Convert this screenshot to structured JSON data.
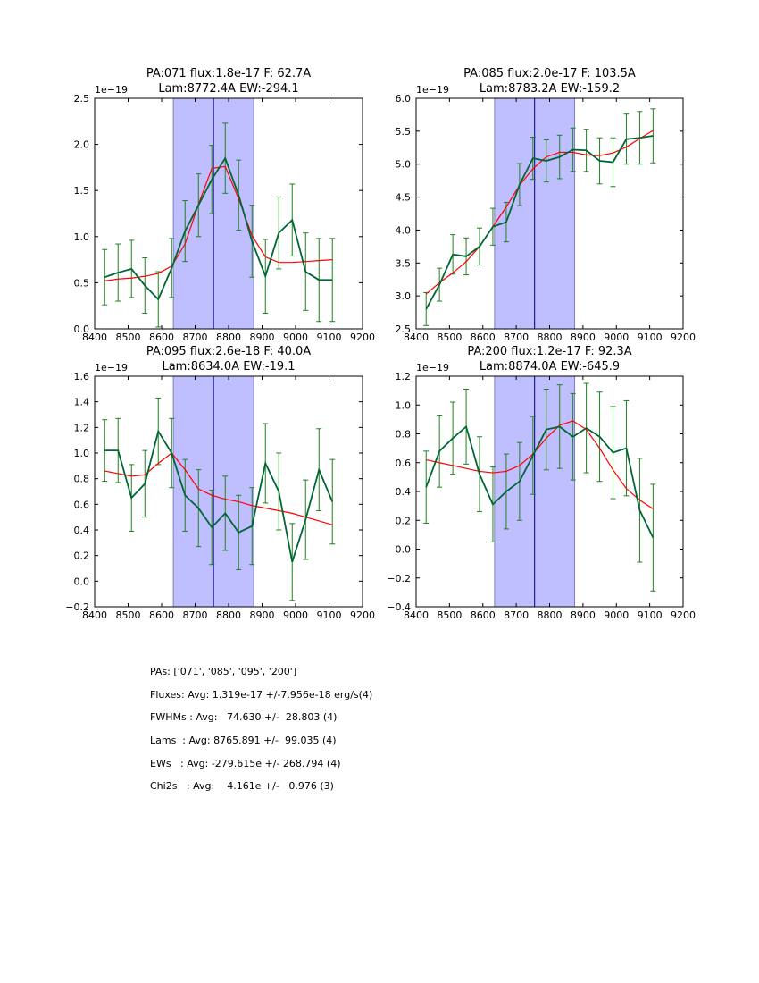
{
  "colors": {
    "band_fill": "#bfbfff",
    "band_edge": "#7f7fbf",
    "center_line": "#000080",
    "data_line": "#006633",
    "error_bar": "#208020",
    "fit_line": "#ff0000",
    "axis": "#000000"
  },
  "chart_data": [
    {
      "type": "line",
      "title_line1": "PA:071 flux:1.8e-17 F: 62.7A",
      "title_line2": "Lam:8772.4A EW:-294.1",
      "offset_label": "1e−19",
      "xlim": [
        8400,
        9200
      ],
      "ylim": [
        0.0,
        2.5
      ],
      "xticks": [
        8400,
        8500,
        8600,
        8700,
        8800,
        8900,
        9000,
        9100,
        9200
      ],
      "yticks": [
        0.0,
        0.5,
        1.0,
        1.5,
        2.0,
        2.5
      ],
      "xtick_labels": [
        "8400",
        "8500",
        "8600",
        "8700",
        "8800",
        "8900",
        "9000",
        "9100",
        "9200"
      ],
      "ytick_labels": [
        "0.0",
        "0.5",
        "1.0",
        "1.5",
        "2.0",
        "2.5"
      ],
      "band": [
        8635,
        8875
      ],
      "center": 8755,
      "x": [
        8430,
        8470,
        8510,
        8550,
        8590,
        8630,
        8670,
        8710,
        8750,
        8790,
        8830,
        8870,
        8910,
        8950,
        8990,
        9030,
        9070,
        9110
      ],
      "y": [
        0.56,
        0.61,
        0.65,
        0.47,
        0.32,
        0.66,
        1.06,
        1.34,
        1.62,
        1.85,
        1.45,
        0.95,
        0.57,
        1.04,
        1.18,
        0.62,
        0.53,
        0.53
      ],
      "err": [
        0.3,
        0.31,
        0.31,
        0.3,
        0.3,
        0.32,
        0.33,
        0.34,
        0.37,
        0.38,
        0.38,
        0.39,
        0.4,
        0.39,
        0.39,
        0.42,
        0.45,
        0.45
      ],
      "fit_x": [
        8430,
        8470,
        8510,
        8550,
        8590,
        8630,
        8670,
        8710,
        8750,
        8790,
        8830,
        8870,
        8910,
        8950,
        8990,
        9030,
        9070,
        9110
      ],
      "fit_y": [
        0.52,
        0.54,
        0.55,
        0.57,
        0.6,
        0.68,
        0.92,
        1.35,
        1.74,
        1.76,
        1.41,
        1.01,
        0.78,
        0.72,
        0.72,
        0.73,
        0.74,
        0.75
      ]
    },
    {
      "type": "line",
      "title_line1": "PA:085 flux:2.0e-17 F: 103.5A",
      "title_line2": "Lam:8783.2A EW:-159.2",
      "offset_label": "1e−19",
      "xlim": [
        8400,
        9200
      ],
      "ylim": [
        2.5,
        6.0
      ],
      "xticks": [
        8400,
        8500,
        8600,
        8700,
        8800,
        8900,
        9000,
        9100,
        9200
      ],
      "yticks": [
        2.5,
        3.0,
        3.5,
        4.0,
        4.5,
        5.0,
        5.5,
        6.0
      ],
      "xtick_labels": [
        "8400",
        "8500",
        "8600",
        "8700",
        "8800",
        "8900",
        "9000",
        "9100",
        "9200"
      ],
      "ytick_labels": [
        "2.5",
        "3.0",
        "3.5",
        "4.0",
        "4.5",
        "5.0",
        "5.5",
        "6.0"
      ],
      "band": [
        8635,
        8875
      ],
      "center": 8755,
      "x": [
        8430,
        8470,
        8510,
        8550,
        8590,
        8630,
        8670,
        8710,
        8750,
        8790,
        8830,
        8870,
        8910,
        8950,
        8990,
        9030,
        9070,
        9110
      ],
      "y": [
        2.8,
        3.17,
        3.63,
        3.6,
        3.75,
        4.05,
        4.12,
        4.69,
        5.09,
        5.05,
        5.11,
        5.22,
        5.21,
        5.05,
        5.03,
        5.38,
        5.4,
        5.43
      ],
      "err": [
        0.25,
        0.25,
        0.3,
        0.28,
        0.28,
        0.28,
        0.3,
        0.32,
        0.32,
        0.32,
        0.33,
        0.33,
        0.32,
        0.35,
        0.37,
        0.38,
        0.4,
        0.41
      ],
      "fit_x": [
        8430,
        8470,
        8510,
        8550,
        8590,
        8630,
        8670,
        8710,
        8750,
        8790,
        8830,
        8870,
        8910,
        8950,
        8990,
        9030,
        9070,
        9110
      ],
      "fit_y": [
        3.03,
        3.2,
        3.35,
        3.52,
        3.75,
        4.05,
        4.35,
        4.68,
        4.93,
        5.11,
        5.18,
        5.18,
        5.14,
        5.13,
        5.17,
        5.26,
        5.39,
        5.51
      ]
    },
    {
      "type": "line",
      "title_line1": "PA:095 flux:2.6e-18 F: 40.0A",
      "title_line2": "Lam:8634.0A EW:-19.1",
      "offset_label": "1e−19",
      "xlim": [
        8400,
        9200
      ],
      "ylim": [
        -0.2,
        1.6
      ],
      "xticks": [
        8400,
        8500,
        8600,
        8700,
        8800,
        8900,
        9000,
        9100,
        9200
      ],
      "yticks": [
        -0.2,
        0.0,
        0.2,
        0.4,
        0.6,
        0.8,
        1.0,
        1.2,
        1.4,
        1.6
      ],
      "xtick_labels": [
        "8400",
        "8500",
        "8600",
        "8700",
        "8800",
        "8900",
        "9000",
        "9100",
        "9200"
      ],
      "ytick_labels": [
        "−0.2",
        "0.0",
        "0.2",
        "0.4",
        "0.6",
        "0.8",
        "1.0",
        "1.2",
        "1.4",
        "1.6"
      ],
      "band": [
        8635,
        8875
      ],
      "center": 8755,
      "x": [
        8430,
        8470,
        8510,
        8550,
        8590,
        8630,
        8670,
        8710,
        8750,
        8790,
        8830,
        8870,
        8910,
        8950,
        8990,
        9030,
        9070,
        9110
      ],
      "y": [
        1.02,
        1.02,
        0.65,
        0.76,
        1.17,
        1.0,
        0.67,
        0.57,
        0.42,
        0.53,
        0.38,
        0.43,
        0.92,
        0.7,
        0.15,
        0.48,
        0.87,
        0.62
      ],
      "err": [
        0.24,
        0.25,
        0.26,
        0.26,
        0.26,
        0.27,
        0.28,
        0.3,
        0.29,
        0.29,
        0.29,
        0.3,
        0.31,
        0.3,
        0.3,
        0.31,
        0.32,
        0.33
      ],
      "fit_x": [
        8430,
        8470,
        8510,
        8550,
        8590,
        8630,
        8670,
        8710,
        8750,
        8790,
        8830,
        8870,
        8910,
        8950,
        8990,
        9030,
        9070,
        9110
      ],
      "fit_y": [
        0.86,
        0.84,
        0.82,
        0.83,
        0.92,
        1.0,
        0.87,
        0.72,
        0.67,
        0.64,
        0.62,
        0.59,
        0.57,
        0.55,
        0.53,
        0.5,
        0.47,
        0.44
      ]
    },
    {
      "type": "line",
      "title_line1": "PA:200 flux:1.2e-17 F: 92.3A",
      "title_line2": "Lam:8874.0A EW:-645.9",
      "offset_label": "1e−19",
      "xlim": [
        8400,
        9200
      ],
      "ylim": [
        -0.4,
        1.2
      ],
      "xticks": [
        8400,
        8500,
        8600,
        8700,
        8800,
        8900,
        9000,
        9100,
        9200
      ],
      "yticks": [
        -0.4,
        -0.2,
        0.0,
        0.2,
        0.4,
        0.6,
        0.8,
        1.0,
        1.2
      ],
      "xtick_labels": [
        "8400",
        "8500",
        "8600",
        "8700",
        "8800",
        "8900",
        "9000",
        "9100",
        "9200"
      ],
      "ytick_labels": [
        "−0.4",
        "−0.2",
        "0.0",
        "0.2",
        "0.4",
        "0.6",
        "0.8",
        "1.0",
        "1.2"
      ],
      "band": [
        8635,
        8875
      ],
      "center": 8755,
      "x": [
        8430,
        8470,
        8510,
        8550,
        8590,
        8630,
        8670,
        8710,
        8750,
        8790,
        8830,
        8870,
        8910,
        8950,
        8990,
        9030,
        9070,
        9110
      ],
      "y": [
        0.43,
        0.68,
        0.77,
        0.85,
        0.52,
        0.31,
        0.4,
        0.47,
        0.65,
        0.83,
        0.85,
        0.78,
        0.84,
        0.78,
        0.67,
        0.7,
        0.27,
        0.08
      ],
      "err": [
        0.25,
        0.25,
        0.25,
        0.26,
        0.26,
        0.26,
        0.26,
        0.27,
        0.27,
        0.28,
        0.29,
        0.3,
        0.31,
        0.31,
        0.32,
        0.33,
        0.36,
        0.37
      ],
      "fit_x": [
        8430,
        8470,
        8510,
        8550,
        8590,
        8630,
        8670,
        8710,
        8750,
        8790,
        8830,
        8870,
        8910,
        8950,
        8990,
        9030,
        9070,
        9110
      ],
      "fit_y": [
        0.62,
        0.6,
        0.58,
        0.56,
        0.54,
        0.53,
        0.54,
        0.58,
        0.66,
        0.77,
        0.86,
        0.89,
        0.83,
        0.7,
        0.55,
        0.42,
        0.34,
        0.28
      ]
    }
  ],
  "summary": {
    "pas": "PAs: ['071', '085', '095', '200']",
    "fluxes": "Fluxes: Avg: 1.319e-17 +/-7.956e-18 erg/s(4)",
    "fwhms": "FWHMs : Avg:   74.630 +/-  28.803 (4)",
    "lams": "Lams  : Avg: 8765.891 +/-  99.035 (4)",
    "ews": "EWs   : Avg: -279.615e +/- 268.794 (4)",
    "chi2s": "Chi2s   : Avg:    4.161e +/-   0.976 (3)"
  }
}
